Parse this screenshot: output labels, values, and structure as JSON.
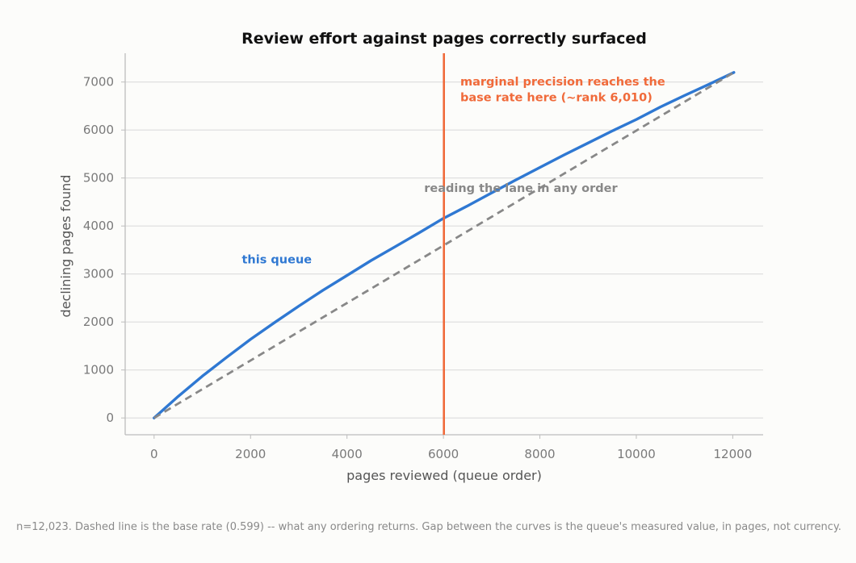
{
  "chart_data": {
    "type": "line",
    "title": "Review effort against pages correctly surfaced",
    "xlabel": "pages reviewed (queue order)",
    "ylabel": "declining pages found",
    "xlim": [
      -600,
      12630
    ],
    "ylim": [
      -350,
      7600
    ],
    "xticks": [
      0,
      2000,
      4000,
      6000,
      8000,
      10000,
      12000
    ],
    "yticks": [
      0,
      1000,
      2000,
      3000,
      4000,
      5000,
      6000,
      7000
    ],
    "grid": "horizontal",
    "series": [
      {
        "name": "this queue",
        "color": "#2f78d2",
        "style": "solid",
        "x": [
          0,
          500,
          1000,
          1500,
          2000,
          2500,
          3000,
          3500,
          4000,
          4500,
          5000,
          5500,
          6000,
          6500,
          7000,
          7500,
          8000,
          8500,
          9000,
          9500,
          10000,
          10500,
          11000,
          11500,
          12023
        ],
        "y": [
          0,
          450,
          870,
          1260,
          1640,
          1990,
          2330,
          2660,
          2970,
          3280,
          3570,
          3860,
          4160,
          4420,
          4690,
          4960,
          5220,
          5480,
          5730,
          5980,
          6220,
          6480,
          6720,
          6950,
          7200
        ]
      },
      {
        "name": "reading the lane in any order",
        "color": "#888888",
        "style": "dashed",
        "x": [
          0,
          12023
        ],
        "y": [
          0,
          7200
        ]
      }
    ],
    "vline": {
      "x": 6010,
      "color": "#f06a3a"
    },
    "annotations": [
      {
        "text": "marginal precision reaches the",
        "x": 6350,
        "y": 6930,
        "color": "#f06a3a"
      },
      {
        "text": "base rate here (~rank 6,010)",
        "x": 6350,
        "y": 6600,
        "color": "#f06a3a"
      },
      {
        "text": "reading the lane in any order",
        "x": 5600,
        "y": 4710,
        "color": "#888888"
      },
      {
        "text": "this queue",
        "x": 1820,
        "y": 3220,
        "color": "#2f78d2"
      }
    ],
    "footnote": "n=12,023. Dashed line is the base rate (0.599) -- what any ordering returns. Gap between the curves is the queue's measured value, in pages, not currency."
  }
}
